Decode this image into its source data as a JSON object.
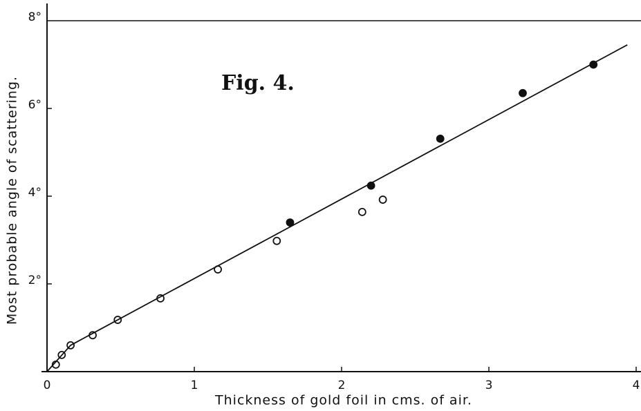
{
  "chart_data": {
    "type": "scatter",
    "title": "Fig. 4.",
    "xlabel": "Thickness of gold foil in cms. of air.",
    "ylabel": "Most probable angle of scattering.",
    "xlim": [
      0,
      4
    ],
    "ylim": [
      0,
      8
    ],
    "xticks": [
      0,
      1,
      2,
      3,
      4
    ],
    "yticks": [
      {
        "value": 2,
        "label": "2°"
      },
      {
        "value": 4,
        "label": "4°"
      },
      {
        "value": 6,
        "label": "6°"
      },
      {
        "value": 8,
        "label": "8°"
      }
    ],
    "color": "#111111",
    "series": [
      {
        "marker": "open",
        "color": "#111111",
        "x": [
          0.06,
          0.1,
          0.16,
          0.31,
          0.48,
          0.77,
          1.16,
          1.56,
          2.14,
          2.28
        ],
        "values": [
          0.16,
          0.38,
          0.6,
          0.83,
          1.18,
          1.67,
          2.33,
          2.98,
          3.64,
          3.92
        ]
      },
      {
        "marker": "filled",
        "color": "#111111",
        "x": [
          1.65,
          2.2,
          2.67,
          3.23,
          3.71
        ],
        "values": [
          3.4,
          4.24,
          5.31,
          6.35,
          7.0
        ]
      },
      {
        "marker": "line",
        "color": "#111111",
        "x": [
          0,
          0.16,
          3.94
        ],
        "values": [
          0,
          0.6,
          7.45
        ]
      }
    ]
  }
}
